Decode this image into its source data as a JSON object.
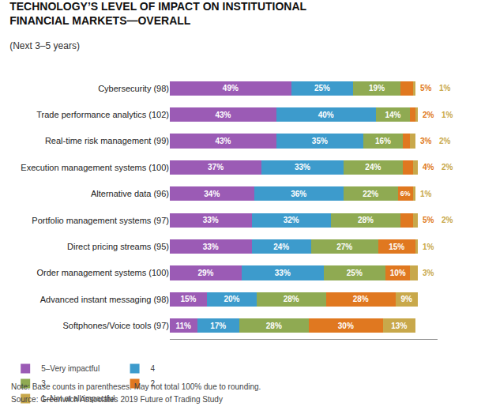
{
  "chart_data": {
    "type": "bar",
    "orientation": "horizontal",
    "stacked": true,
    "title": "TECHNOLOGY’S LEVEL OF IMPACT ON INSTITUTIONAL\nFINANCIAL MARKETS—OVERALL",
    "subtitle": "(Next 3–5 years)",
    "categories": [
      "Cybersecurity (98)",
      "Trade performance analytics (102)",
      "Real-time risk management (99)",
      "Execution management systems (100)",
      "Alternative data (96)",
      "Portfolio management systems (97)",
      "Direct pricing streams (95)",
      "Order management systems (100)",
      "Advanced instant messaging (98)",
      "Softphones/Voice tools (97)"
    ],
    "series": [
      {
        "name": "5–Very impactful",
        "color": "#9b5bb5",
        "values": [
          49,
          43,
          43,
          37,
          34,
          33,
          33,
          29,
          15,
          11
        ],
        "value_labels": [
          "49%",
          "43%",
          "43%",
          "37%",
          "34%",
          "33%",
          "33%",
          "29%",
          "15%",
          "11%"
        ]
      },
      {
        "name": "4",
        "color": "#3d9bcc",
        "values": [
          25,
          40,
          35,
          33,
          36,
          32,
          24,
          33,
          20,
          17
        ],
        "value_labels": [
          "25%",
          "40%",
          "35%",
          "33%",
          "36%",
          "32%",
          "24%",
          "33%",
          "20%",
          "17%"
        ]
      },
      {
        "name": "3",
        "color": "#8faa52",
        "values": [
          19,
          14,
          16,
          24,
          22,
          28,
          27,
          25,
          28,
          28
        ],
        "value_labels": [
          "19%",
          "14%",
          "16%",
          "24%",
          "22%",
          "28%",
          "27%",
          "25%",
          "28%",
          "28%"
        ]
      },
      {
        "name": "2",
        "color": "#e07820",
        "values": [
          5,
          2,
          3,
          4,
          6,
          5,
          15,
          10,
          28,
          30
        ],
        "value_labels": [
          "5%",
          "2%",
          "3%",
          "4%",
          "6%",
          "5%",
          "15%",
          "10%",
          "28%",
          "30%"
        ]
      },
      {
        "name": "1–Not at all impactful",
        "color": "#c8a84b",
        "values": [
          1,
          1,
          2,
          2,
          1,
          2,
          1,
          3,
          9,
          13
        ],
        "value_labels": [
          "1%",
          "1%",
          "2%",
          "2%",
          "1%",
          "2%",
          "1%",
          "3%",
          "9%",
          "13%"
        ]
      }
    ],
    "xlim": [
      0,
      108
    ],
    "grid": false,
    "legend": "lower left",
    "data_labels": true,
    "tick_labels": "y",
    "annotations": [
      "Note: Base counts in parentheses. May not total 100% due to rounding.",
      "Source: Greenwich Associates 2019 Future of Trading Study"
    ]
  }
}
